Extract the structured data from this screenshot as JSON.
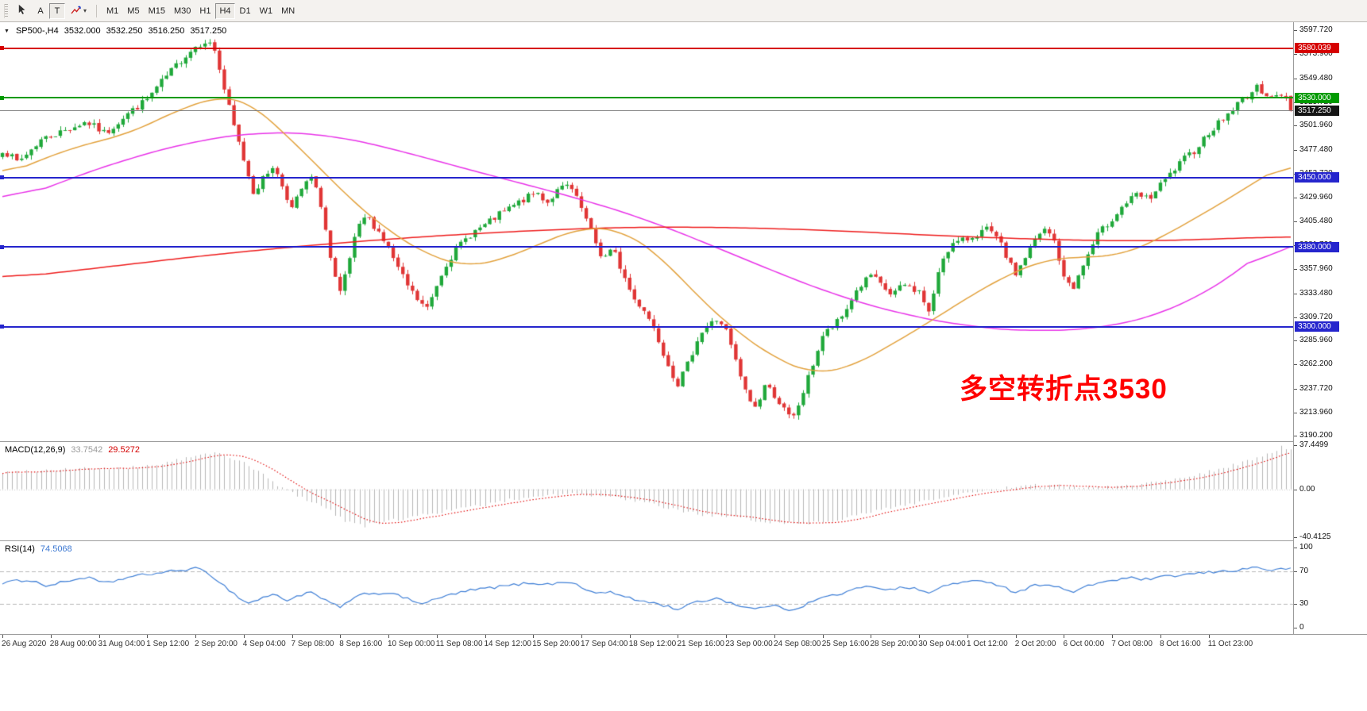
{
  "toolbar": {
    "tools": [
      {
        "name": "cursor-tool",
        "label": ""
      },
      {
        "name": "text-label-tool",
        "label": "A"
      },
      {
        "name": "text-tool",
        "label": "T",
        "pressed": true
      },
      {
        "name": "arrow-objects-tool",
        "label": "",
        "has_dropdown": true
      }
    ],
    "timeframes": [
      "M1",
      "M5",
      "M15",
      "M30",
      "H1",
      "H4",
      "D1",
      "W1",
      "MN"
    ],
    "active_timeframe": "H4"
  },
  "main_chart": {
    "header": {
      "symbol": "SP500-,H4",
      "open": "3532.000",
      "high": "3532.250",
      "low": "3516.250",
      "close": "3517.250"
    },
    "price_axis_labels": [
      "3597.720",
      "3573.960",
      "3549.480",
      "3525.720",
      "3501.960",
      "3477.480",
      "3453.720",
      "3429.960",
      "3405.480",
      "3381.720",
      "3357.960",
      "3333.480",
      "3309.720",
      "3285.960",
      "3262.200",
      "3237.720",
      "3213.960",
      "3190.200"
    ],
    "hlines": [
      {
        "value": 3580.039,
        "label": "3580.039",
        "color": "#d60000",
        "thickness": 2
      },
      {
        "value": 3530.0,
        "label": "3530.000",
        "color": "#009a00",
        "thickness": 2
      },
      {
        "value": 3450.0,
        "label": "3450.000",
        "color": "#2525cd",
        "thickness": 2
      },
      {
        "value": 3380.0,
        "label": "3380.000",
        "color": "#2525cd",
        "thickness": 2
      },
      {
        "value": 3300.0,
        "label": "3300.000",
        "color": "#2525cd",
        "thickness": 2
      }
    ],
    "current_price": {
      "value": 3517.25,
      "label": "3517.250",
      "line_color": "#808080",
      "badge_color": "#151515"
    },
    "annotation": {
      "text": "多空转折点3530",
      "color": "#ff0000"
    },
    "candle_up_color": "#1fa83a",
    "candle_down_color": "#e03535",
    "ma_colors": {
      "fast": "#e2a13c",
      "medium": "#e832e8",
      "slow": "#ee1c1c"
    }
  },
  "macd_panel": {
    "label": "MACD(12,26,9)",
    "value_main": "33.7542",
    "value_signal": "29.5272",
    "axis_labels": [
      "37.4499",
      "0.00",
      "-40.4125"
    ],
    "histogram_color": "#b6b6b6",
    "signal_color": "#e00000"
  },
  "rsi_panel": {
    "label": "RSI(14)",
    "value": "74.5068",
    "axis_labels": [
      "100",
      "70",
      "30",
      "0"
    ],
    "levels": [
      70,
      30
    ],
    "line_color": "#3f7fd6"
  },
  "time_axis": {
    "labels": [
      "26 Aug 2020",
      "28 Aug 00:00",
      "31 Aug 04:00",
      "1 Sep 12:00",
      "2 Sep 20:00",
      "4 Sep 04:00",
      "7 Sep 08:00",
      "8 Sep 16:00",
      "10 Sep 00:00",
      "11 Sep 08:00",
      "14 Sep 12:00",
      "15 Sep 20:00",
      "17 Sep 04:00",
      "18 Sep 12:00",
      "21 Sep 16:00",
      "23 Sep 00:00",
      "24 Sep 08:00",
      "25 Sep 16:00",
      "28 Sep 20:00",
      "30 Sep 04:00",
      "1 Oct 12:00",
      "2 Oct 20:00",
      "6 Oct 00:00",
      "7 Oct 08:00",
      "8 Oct 16:00",
      "11 Oct 23:00"
    ],
    "bars_per_label": 10
  },
  "chart_data": {
    "type": "candlestick",
    "symbol": "SP500",
    "timeframe": "H4",
    "bars": 268,
    "y_range_main": [
      3185,
      3606
    ],
    "y_range_macd": [
      -43.3,
      40
    ],
    "y_range_rsi": [
      0,
      100
    ],
    "last_bar": {
      "open": 3532.0,
      "high": 3532.25,
      "low": 3516.25,
      "close": 3517.25
    },
    "price_path": [
      [
        0,
        3478
      ],
      [
        0.012,
        3465
      ],
      [
        0.03,
        3488
      ],
      [
        0.05,
        3498
      ],
      [
        0.065,
        3506
      ],
      [
        0.08,
        3494
      ],
      [
        0.095,
        3512
      ],
      [
        0.112,
        3528
      ],
      [
        0.125,
        3548
      ],
      [
        0.14,
        3570
      ],
      [
        0.15,
        3582
      ],
      [
        0.158,
        3588
      ],
      [
        0.165,
        3578
      ],
      [
        0.172,
        3540
      ],
      [
        0.18,
        3500
      ],
      [
        0.188,
        3465
      ],
      [
        0.195,
        3435
      ],
      [
        0.202,
        3448
      ],
      [
        0.21,
        3462
      ],
      [
        0.218,
        3440
      ],
      [
        0.225,
        3418
      ],
      [
        0.232,
        3438
      ],
      [
        0.24,
        3450
      ],
      [
        0.248,
        3420
      ],
      [
        0.256,
        3358
      ],
      [
        0.262,
        3332
      ],
      [
        0.268,
        3360
      ],
      [
        0.275,
        3395
      ],
      [
        0.282,
        3412
      ],
      [
        0.292,
        3396
      ],
      [
        0.3,
        3378
      ],
      [
        0.308,
        3356
      ],
      [
        0.316,
        3338
      ],
      [
        0.324,
        3324
      ],
      [
        0.33,
        3318
      ],
      [
        0.337,
        3342
      ],
      [
        0.345,
        3365
      ],
      [
        0.355,
        3382
      ],
      [
        0.365,
        3395
      ],
      [
        0.375,
        3402
      ],
      [
        0.385,
        3412
      ],
      [
        0.395,
        3420
      ],
      [
        0.405,
        3428
      ],
      [
        0.415,
        3435
      ],
      [
        0.423,
        3425
      ],
      [
        0.432,
        3438
      ],
      [
        0.44,
        3442
      ],
      [
        0.449,
        3420
      ],
      [
        0.458,
        3392
      ],
      [
        0.466,
        3368
      ],
      [
        0.474,
        3378
      ],
      [
        0.482,
        3352
      ],
      [
        0.49,
        3328
      ],
      [
        0.498,
        3318
      ],
      [
        0.506,
        3298
      ],
      [
        0.515,
        3268
      ],
      [
        0.524,
        3242
      ],
      [
        0.532,
        3262
      ],
      [
        0.54,
        3290
      ],
      [
        0.548,
        3302
      ],
      [
        0.556,
        3308
      ],
      [
        0.562,
        3295
      ],
      [
        0.57,
        3262
      ],
      [
        0.578,
        3230
      ],
      [
        0.585,
        3218
      ],
      [
        0.592,
        3242
      ],
      [
        0.599,
        3232
      ],
      [
        0.606,
        3218
      ],
      [
        0.613,
        3205
      ],
      [
        0.62,
        3228
      ],
      [
        0.628,
        3258
      ],
      [
        0.637,
        3292
      ],
      [
        0.645,
        3300
      ],
      [
        0.653,
        3312
      ],
      [
        0.662,
        3335
      ],
      [
        0.674,
        3352
      ],
      [
        0.683,
        3340
      ],
      [
        0.69,
        3332
      ],
      [
        0.7,
        3342
      ],
      [
        0.712,
        3335
      ],
      [
        0.72,
        3312
      ],
      [
        0.728,
        3365
      ],
      [
        0.736,
        3382
      ],
      [
        0.749,
        3388
      ],
      [
        0.757,
        3394
      ],
      [
        0.765,
        3398
      ],
      [
        0.774,
        3385
      ],
      [
        0.786,
        3352
      ],
      [
        0.795,
        3372
      ],
      [
        0.803,
        3390
      ],
      [
        0.81,
        3398
      ],
      [
        0.817,
        3385
      ],
      [
        0.824,
        3348
      ],
      [
        0.832,
        3340
      ],
      [
        0.84,
        3365
      ],
      [
        0.85,
        3392
      ],
      [
        0.861,
        3408
      ],
      [
        0.87,
        3422
      ],
      [
        0.88,
        3432
      ],
      [
        0.89,
        3428
      ],
      [
        0.899,
        3442
      ],
      [
        0.908,
        3455
      ],
      [
        0.917,
        3468
      ],
      [
        0.926,
        3478
      ],
      [
        0.936,
        3495
      ],
      [
        0.95,
        3512
      ],
      [
        0.962,
        3528
      ],
      [
        0.974,
        3540
      ],
      [
        0.982,
        3534
      ],
      [
        0.99,
        3530
      ],
      [
        0.996,
        3532
      ],
      [
        1,
        3517.25
      ]
    ],
    "ma_fast_orange": [
      [
        0,
        3452
      ],
      [
        0.05,
        3478
      ],
      [
        0.1,
        3495
      ],
      [
        0.14,
        3520
      ],
      [
        0.17,
        3532
      ],
      [
        0.19,
        3528
      ],
      [
        0.21,
        3505
      ],
      [
        0.24,
        3468
      ],
      [
        0.27,
        3428
      ],
      [
        0.3,
        3396
      ],
      [
        0.33,
        3372
      ],
      [
        0.36,
        3360
      ],
      [
        0.39,
        3368
      ],
      [
        0.42,
        3385
      ],
      [
        0.45,
        3400
      ],
      [
        0.48,
        3398
      ],
      [
        0.51,
        3372
      ],
      [
        0.54,
        3330
      ],
      [
        0.57,
        3295
      ],
      [
        0.6,
        3268
      ],
      [
        0.63,
        3252
      ],
      [
        0.66,
        3260
      ],
      [
        0.69,
        3282
      ],
      [
        0.72,
        3305
      ],
      [
        0.75,
        3330
      ],
      [
        0.78,
        3352
      ],
      [
        0.81,
        3368
      ],
      [
        0.84,
        3370
      ],
      [
        0.87,
        3372
      ],
      [
        0.9,
        3390
      ],
      [
        0.93,
        3412
      ],
      [
        0.96,
        3435
      ],
      [
        0.98,
        3452
      ],
      [
        1,
        3466
      ]
    ],
    "ma_medium_magenta": [
      [
        0,
        3422
      ],
      [
        0.05,
        3448
      ],
      [
        0.1,
        3470
      ],
      [
        0.15,
        3487
      ],
      [
        0.2,
        3496
      ],
      [
        0.25,
        3494
      ],
      [
        0.3,
        3480
      ],
      [
        0.35,
        3462
      ],
      [
        0.4,
        3445
      ],
      [
        0.45,
        3428
      ],
      [
        0.5,
        3408
      ],
      [
        0.55,
        3382
      ],
      [
        0.6,
        3355
      ],
      [
        0.65,
        3330
      ],
      [
        0.7,
        3312
      ],
      [
        0.75,
        3300
      ],
      [
        0.8,
        3295
      ],
      [
        0.85,
        3298
      ],
      [
        0.88,
        3305
      ],
      [
        0.91,
        3318
      ],
      [
        0.94,
        3338
      ],
      [
        0.97,
        3365
      ],
      [
        1,
        3400
      ]
    ],
    "ma_slow_red": [
      [
        0,
        3348
      ],
      [
        0.08,
        3360
      ],
      [
        0.16,
        3372
      ],
      [
        0.24,
        3382
      ],
      [
        0.32,
        3390
      ],
      [
        0.4,
        3396
      ],
      [
        0.48,
        3400
      ],
      [
        0.56,
        3400
      ],
      [
        0.64,
        3397
      ],
      [
        0.72,
        3392
      ],
      [
        0.8,
        3388
      ],
      [
        0.88,
        3386
      ],
      [
        0.94,
        3388
      ],
      [
        1,
        3391
      ]
    ],
    "macd_hist_path": [
      [
        0,
        14
      ],
      [
        0.03,
        16
      ],
      [
        0.06,
        18
      ],
      [
        0.09,
        17
      ],
      [
        0.12,
        21
      ],
      [
        0.15,
        28
      ],
      [
        0.165,
        31
      ],
      [
        0.18,
        26
      ],
      [
        0.2,
        14
      ],
      [
        0.215,
        2
      ],
      [
        0.23,
        -6
      ],
      [
        0.25,
        -15
      ],
      [
        0.265,
        -26
      ],
      [
        0.28,
        -31
      ],
      [
        0.3,
        -27
      ],
      [
        0.32,
        -23
      ],
      [
        0.34,
        -19
      ],
      [
        0.36,
        -16
      ],
      [
        0.38,
        -12
      ],
      [
        0.4,
        -8
      ],
      [
        0.42,
        -5
      ],
      [
        0.44,
        -4
      ],
      [
        0.46,
        -5
      ],
      [
        0.48,
        -8
      ],
      [
        0.5,
        -12
      ],
      [
        0.52,
        -17
      ],
      [
        0.54,
        -21
      ],
      [
        0.56,
        -23
      ],
      [
        0.58,
        -26
      ],
      [
        0.6,
        -28
      ],
      [
        0.62,
        -29
      ],
      [
        0.64,
        -27
      ],
      [
        0.66,
        -23
      ],
      [
        0.68,
        -18
      ],
      [
        0.7,
        -13
      ],
      [
        0.72,
        -9
      ],
      [
        0.74,
        -5
      ],
      [
        0.76,
        -2
      ],
      [
        0.78,
        1
      ],
      [
        0.8,
        3
      ],
      [
        0.82,
        3
      ],
      [
        0.84,
        2
      ],
      [
        0.86,
        2
      ],
      [
        0.88,
        4
      ],
      [
        0.9,
        7
      ],
      [
        0.92,
        11
      ],
      [
        0.94,
        16
      ],
      [
        0.96,
        22
      ],
      [
        0.98,
        28
      ],
      [
        0.993,
        36
      ],
      [
        1,
        33.7542
      ]
    ],
    "rsi_path": [
      [
        0,
        56
      ],
      [
        0.02,
        60
      ],
      [
        0.035,
        52
      ],
      [
        0.05,
        58
      ],
      [
        0.065,
        63
      ],
      [
        0.08,
        55
      ],
      [
        0.095,
        62
      ],
      [
        0.11,
        66
      ],
      [
        0.125,
        69
      ],
      [
        0.14,
        72
      ],
      [
        0.15,
        74
      ],
      [
        0.16,
        68
      ],
      [
        0.17,
        55
      ],
      [
        0.18,
        42
      ],
      [
        0.19,
        30
      ],
      [
        0.2,
        36
      ],
      [
        0.21,
        42
      ],
      [
        0.22,
        34
      ],
      [
        0.23,
        40
      ],
      [
        0.24,
        44
      ],
      [
        0.25,
        34
      ],
      [
        0.262,
        26
      ],
      [
        0.272,
        35
      ],
      [
        0.282,
        44
      ],
      [
        0.29,
        42
      ],
      [
        0.3,
        44
      ],
      [
        0.31,
        38
      ],
      [
        0.32,
        33
      ],
      [
        0.328,
        30
      ],
      [
        0.337,
        36
      ],
      [
        0.35,
        42
      ],
      [
        0.365,
        47
      ],
      [
        0.38,
        50
      ],
      [
        0.395,
        53
      ],
      [
        0.41,
        56
      ],
      [
        0.425,
        54
      ],
      [
        0.44,
        58
      ],
      [
        0.449,
        50
      ],
      [
        0.46,
        43
      ],
      [
        0.47,
        45
      ],
      [
        0.482,
        39
      ],
      [
        0.49,
        35
      ],
      [
        0.5,
        33
      ],
      [
        0.515,
        27
      ],
      [
        0.524,
        23
      ],
      [
        0.535,
        30
      ],
      [
        0.548,
        35
      ],
      [
        0.556,
        37
      ],
      [
        0.565,
        31
      ],
      [
        0.578,
        25
      ],
      [
        0.585,
        23
      ],
      [
        0.595,
        28
      ],
      [
        0.605,
        25
      ],
      [
        0.613,
        22
      ],
      [
        0.625,
        30
      ],
      [
        0.637,
        38
      ],
      [
        0.65,
        42
      ],
      [
        0.662,
        48
      ],
      [
        0.674,
        52
      ],
      [
        0.685,
        48
      ],
      [
        0.7,
        50
      ],
      [
        0.712,
        48
      ],
      [
        0.72,
        42
      ],
      [
        0.73,
        52
      ],
      [
        0.74,
        56
      ],
      [
        0.75,
        57
      ],
      [
        0.765,
        58
      ],
      [
        0.774,
        53
      ],
      [
        0.786,
        44
      ],
      [
        0.8,
        52
      ],
      [
        0.81,
        55
      ],
      [
        0.82,
        50
      ],
      [
        0.83,
        44
      ],
      [
        0.84,
        50
      ],
      [
        0.85,
        56
      ],
      [
        0.861,
        59
      ],
      [
        0.875,
        62
      ],
      [
        0.89,
        60
      ],
      [
        0.9,
        63
      ],
      [
        0.917,
        66
      ],
      [
        0.93,
        68
      ],
      [
        0.945,
        70
      ],
      [
        0.96,
        72
      ],
      [
        0.974,
        76
      ],
      [
        0.985,
        71
      ],
      [
        1,
        74.5068
      ]
    ]
  }
}
